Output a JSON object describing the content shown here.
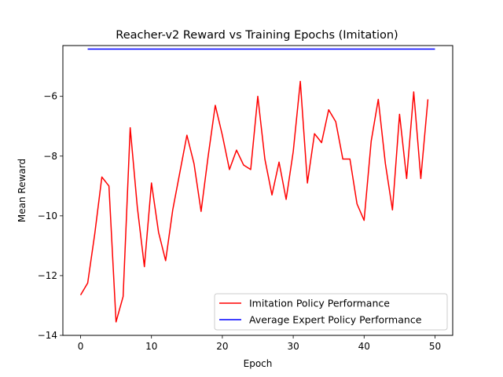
{
  "chart_data": {
    "type": "line",
    "title": "Reacher-v2 Reward vs Training Epochs (Imitation)",
    "xlabel": "Epoch",
    "ylabel": "Mean Reward",
    "xlim": [
      -2.5,
      52.5
    ],
    "ylim": [
      -14,
      -4.3
    ],
    "x_ticks": [
      0,
      10,
      20,
      30,
      40,
      50
    ],
    "y_ticks": [
      -14,
      -12,
      -10,
      -8,
      -6
    ],
    "legend_position": "lower-right",
    "series": [
      {
        "name": "Imitation Policy Performance",
        "color": "#ff0000",
        "x": [
          0,
          1,
          2,
          3,
          4,
          5,
          6,
          7,
          8,
          9,
          10,
          11,
          12,
          13,
          14,
          15,
          16,
          17,
          18,
          19,
          20,
          21,
          22,
          23,
          24,
          25,
          26,
          27,
          28,
          29,
          30,
          31,
          32,
          33,
          34,
          35,
          36,
          37,
          38,
          39,
          40,
          41,
          42,
          43,
          44,
          45,
          46,
          47,
          48,
          49
        ],
        "values": [
          -12.65,
          -12.25,
          -10.6,
          -8.7,
          -9.0,
          -13.55,
          -12.7,
          -7.05,
          -9.7,
          -11.7,
          -8.9,
          -10.55,
          -11.5,
          -9.8,
          -8.55,
          -7.3,
          -8.25,
          -9.85,
          -8.0,
          -6.3,
          -7.3,
          -8.45,
          -7.8,
          -8.3,
          -8.45,
          -6.0,
          -8.1,
          -9.3,
          -8.2,
          -9.45,
          -7.85,
          -5.5,
          -8.9,
          -7.25,
          -7.55,
          -6.45,
          -6.85,
          -8.1,
          -8.1,
          -9.6,
          -10.15,
          -7.5,
          -6.1,
          -8.25,
          -9.8,
          -6.6,
          -8.75,
          -5.85,
          -8.75,
          -6.1
        ]
      },
      {
        "name": "Average Expert Policy Performance",
        "color": "#0000ff",
        "x": [
          1,
          50
        ],
        "values": [
          -4.42,
          -4.42
        ]
      }
    ]
  }
}
